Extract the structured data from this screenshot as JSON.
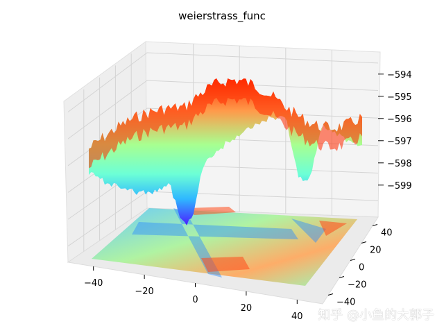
{
  "chart_data": {
    "type": "surface3d",
    "title": "weierstrass_func",
    "x_ticks": [
      -40,
      -20,
      0,
      20,
      40
    ],
    "y_ticks": [
      -40,
      -20,
      0,
      20,
      40
    ],
    "z_ticks": [
      -594,
      -595,
      -596,
      -597,
      -598,
      -599
    ],
    "x_range": [
      -50,
      50
    ],
    "y_range": [
      -50,
      50
    ],
    "z_range": [
      -599.6,
      -593.6
    ],
    "colormap": "rainbow",
    "has_floor_contour": true,
    "grid": true
  },
  "watermark": "知乎 @小鱼的大郭子",
  "colors": {
    "pane": "#f2f2f2",
    "grid": "#d9d9d9",
    "low": "#3b2dff",
    "mid": "#80ffb4",
    "high": "#ff2a00"
  }
}
